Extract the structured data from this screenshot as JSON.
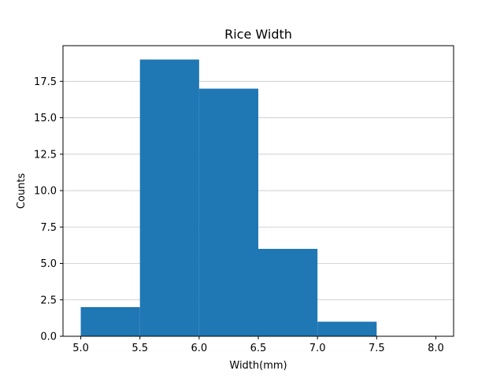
{
  "chart_data": {
    "type": "bar",
    "title": "Rice Width",
    "xlabel": "Width(mm)",
    "ylabel": "Counts",
    "bins": [
      {
        "x0": 5.0,
        "x1": 5.5,
        "count": 2
      },
      {
        "x0": 5.5,
        "x1": 6.0,
        "count": 19
      },
      {
        "x0": 6.0,
        "x1": 6.5,
        "count": 17
      },
      {
        "x0": 6.5,
        "x1": 7.0,
        "count": 6
      },
      {
        "x0": 7.0,
        "x1": 7.5,
        "count": 1
      },
      {
        "x0": 7.5,
        "x1": 8.0,
        "count": 0
      }
    ],
    "xlim": [
      4.85,
      8.15
    ],
    "ylim": [
      0,
      19.95
    ],
    "xticks": [
      "5.0",
      "5.5",
      "6.0",
      "6.5",
      "7.0",
      "7.5",
      "8.0"
    ],
    "yticks": [
      "0.0",
      "2.5",
      "5.0",
      "7.5",
      "10.0",
      "12.5",
      "15.0",
      "17.5"
    ],
    "grid": "horizontal",
    "bar_color": "#1f77b4",
    "grid_color": "#c8c8c8"
  }
}
